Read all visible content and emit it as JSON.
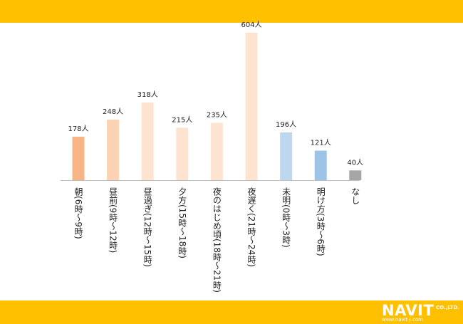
{
  "colors": {
    "band": "#ffc000",
    "axis": "#bfbfbf",
    "label_text": "#222222"
  },
  "logo": {
    "brand": "NAVIT",
    "suffix": "CO.,LTD.",
    "url": "www.navit-j.com"
  },
  "chart_data": {
    "type": "bar",
    "title": "",
    "xlabel": "",
    "ylabel": "",
    "unit": "人",
    "ylim": [
      0,
      604
    ],
    "grid": false,
    "categories": [
      "朝(6時～9時)",
      "昼前(9時～12時)",
      "昼過ぎ(12時～15時)",
      "夕方(15時～18時)",
      "夜のはじめ頃(18時～21時)",
      "夜遅く(21時～24時)",
      "未明(0時～3時)",
      "明け方(3時～6時)",
      "なし"
    ],
    "values": [
      178,
      248,
      318,
      215,
      235,
      604,
      196,
      121,
      40
    ],
    "data_labels": [
      "178人",
      "248人",
      "318人",
      "215人",
      "235人",
      "604人",
      "196人",
      "121人",
      "40人"
    ],
    "bar_colors": [
      "#f7b585",
      "#fbd2b4",
      "#fde3d0",
      "#fde3d0",
      "#fde3d0",
      "#fde3d0",
      "#bdd7ee",
      "#9dc3e6",
      "#a6a6a6"
    ]
  }
}
